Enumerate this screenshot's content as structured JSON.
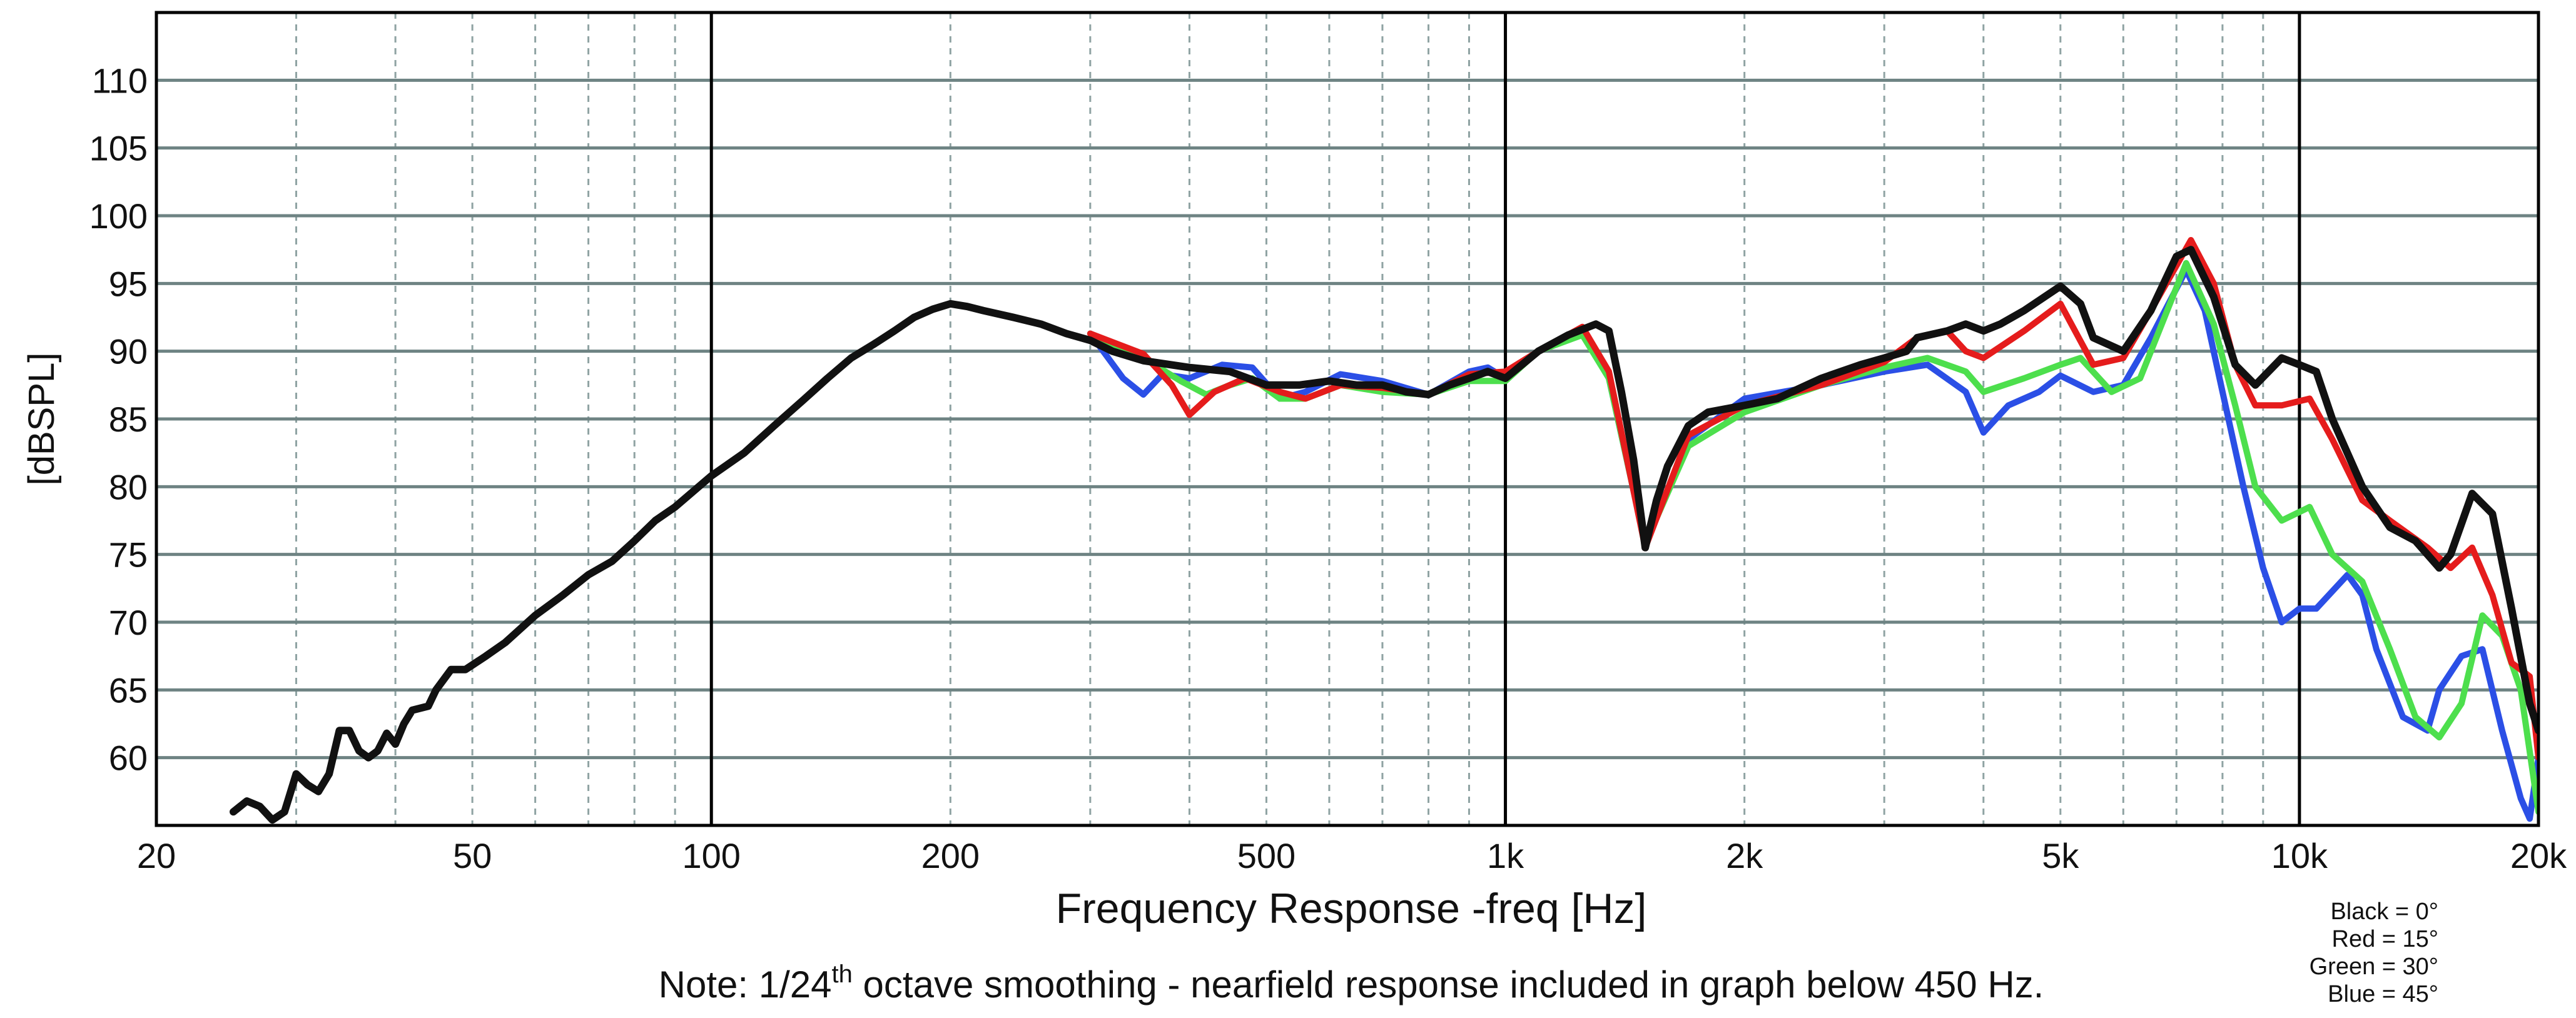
{
  "chart_data": {
    "type": "line",
    "xlabel": "Frequency Response -freq [Hz]",
    "ylabel": "[dBSPL]",
    "x_scale": "log",
    "xlim": [
      20,
      20000
    ],
    "ylim": [
      55,
      115
    ],
    "grid": true,
    "x_ticks": [
      {
        "value": 20,
        "label": "20"
      },
      {
        "value": 50,
        "label": "50"
      },
      {
        "value": 100,
        "label": "100"
      },
      {
        "value": 200,
        "label": "200"
      },
      {
        "value": 500,
        "label": "500"
      },
      {
        "value": 1000,
        "label": "1k"
      },
      {
        "value": 2000,
        "label": "2k"
      },
      {
        "value": 5000,
        "label": "5k"
      },
      {
        "value": 10000,
        "label": "10k"
      },
      {
        "value": 20000,
        "label": "20k"
      }
    ],
    "y_ticks": [
      60,
      65,
      70,
      75,
      80,
      85,
      90,
      95,
      100,
      105,
      110
    ],
    "note": {
      "prefix": "Note: 1/24",
      "superscript": "th",
      "suffix": " octave smoothing - nearfield response included in graph below 450 Hz."
    },
    "legend": [
      "Black = 0°",
      "Red = 15°",
      "Green = 30°",
      "Blue = 45°"
    ],
    "series": [
      {
        "color": "#2b4fe6",
        "points": [
          [
            300,
            91.3
          ],
          [
            330,
            88
          ],
          [
            350,
            86.8
          ],
          [
            370,
            88.3
          ],
          [
            400,
            88
          ],
          [
            440,
            89
          ],
          [
            480,
            88.8
          ],
          [
            520,
            86.5
          ],
          [
            560,
            87
          ],
          [
            620,
            88.3
          ],
          [
            700,
            87.8
          ],
          [
            800,
            86.8
          ],
          [
            900,
            88.5
          ],
          [
            950,
            88.8
          ],
          [
            1000,
            88
          ],
          [
            1100,
            90
          ],
          [
            1250,
            91.5
          ],
          [
            1350,
            88
          ],
          [
            1500,
            75.8
          ],
          [
            1700,
            83.5
          ],
          [
            2000,
            86.5
          ],
          [
            2500,
            87.5
          ],
          [
            3000,
            88.5
          ],
          [
            3400,
            89
          ],
          [
            3800,
            87
          ],
          [
            4000,
            84
          ],
          [
            4300,
            86
          ],
          [
            4700,
            87
          ],
          [
            5000,
            88.2
          ],
          [
            5500,
            87
          ],
          [
            6000,
            87.5
          ],
          [
            6500,
            91
          ],
          [
            7200,
            96
          ],
          [
            7600,
            93
          ],
          [
            8000,
            87
          ],
          [
            8500,
            80
          ],
          [
            9000,
            74
          ],
          [
            9500,
            70
          ],
          [
            10000,
            71
          ],
          [
            10500,
            71
          ],
          [
            11500,
            73.5
          ],
          [
            12000,
            72
          ],
          [
            12500,
            68
          ],
          [
            13500,
            63
          ],
          [
            14500,
            62
          ],
          [
            15000,
            65
          ],
          [
            16000,
            67.5
          ],
          [
            17000,
            68
          ],
          [
            18000,
            62
          ],
          [
            19000,
            57
          ],
          [
            19500,
            55.5
          ],
          [
            20000,
            60
          ]
        ]
      },
      {
        "color": "#4ddf4d",
        "points": [
          [
            300,
            91.3
          ],
          [
            350,
            89.5
          ],
          [
            390,
            87.8
          ],
          [
            420,
            86.8
          ],
          [
            450,
            87.5
          ],
          [
            480,
            88
          ],
          [
            520,
            86.5
          ],
          [
            560,
            86.5
          ],
          [
            620,
            87.5
          ],
          [
            700,
            87
          ],
          [
            800,
            86.8
          ],
          [
            900,
            87.8
          ],
          [
            1000,
            87.8
          ],
          [
            1100,
            90
          ],
          [
            1250,
            91.2
          ],
          [
            1350,
            88
          ],
          [
            1500,
            75.8
          ],
          [
            1700,
            83
          ],
          [
            2000,
            85.5
          ],
          [
            2500,
            87.5
          ],
          [
            3000,
            88.8
          ],
          [
            3400,
            89.5
          ],
          [
            3800,
            88.5
          ],
          [
            4000,
            87
          ],
          [
            4500,
            88
          ],
          [
            5000,
            89
          ],
          [
            5300,
            89.5
          ],
          [
            5800,
            87
          ],
          [
            6300,
            88
          ],
          [
            7200,
            96.5
          ],
          [
            7800,
            92
          ],
          [
            8300,
            86
          ],
          [
            8800,
            80
          ],
          [
            9500,
            77.5
          ],
          [
            10300,
            78.5
          ],
          [
            11000,
            75
          ],
          [
            12000,
            73
          ],
          [
            13000,
            68
          ],
          [
            14000,
            63
          ],
          [
            15000,
            61.5
          ],
          [
            16000,
            64
          ],
          [
            17000,
            70.5
          ],
          [
            18000,
            69
          ],
          [
            19000,
            65
          ],
          [
            20000,
            56
          ]
        ]
      },
      {
        "color": "#e51c1c",
        "points": [
          [
            300,
            91.3
          ],
          [
            350,
            89.8
          ],
          [
            380,
            87.5
          ],
          [
            400,
            85.3
          ],
          [
            430,
            87
          ],
          [
            470,
            88
          ],
          [
            520,
            87
          ],
          [
            560,
            86.5
          ],
          [
            620,
            87.5
          ],
          [
            700,
            87.3
          ],
          [
            800,
            86.8
          ],
          [
            900,
            88.3
          ],
          [
            1000,
            88.5
          ],
          [
            1100,
            90
          ],
          [
            1250,
            91.8
          ],
          [
            1350,
            88.5
          ],
          [
            1500,
            75.5
          ],
          [
            1700,
            83.8
          ],
          [
            2000,
            86
          ],
          [
            2500,
            87.5
          ],
          [
            3000,
            89.2
          ],
          [
            3300,
            91
          ],
          [
            3600,
            91.5
          ],
          [
            3800,
            90
          ],
          [
            4000,
            89.5
          ],
          [
            4500,
            91.5
          ],
          [
            5000,
            93.5
          ],
          [
            5500,
            89
          ],
          [
            6000,
            89.5
          ],
          [
            6500,
            93
          ],
          [
            7300,
            98.2
          ],
          [
            7800,
            95
          ],
          [
            8300,
            89
          ],
          [
            8800,
            86
          ],
          [
            9500,
            86
          ],
          [
            10300,
            86.5
          ],
          [
            11000,
            83.5
          ],
          [
            12000,
            79
          ],
          [
            13000,
            77.5
          ],
          [
            14500,
            75.5
          ],
          [
            15500,
            74
          ],
          [
            16500,
            75.5
          ],
          [
            17500,
            72
          ],
          [
            18500,
            67
          ],
          [
            19500,
            66
          ],
          [
            20000,
            60
          ]
        ]
      },
      {
        "color": "#111111",
        "points": [
          [
            25,
            56
          ],
          [
            26,
            56.8
          ],
          [
            27,
            56.4
          ],
          [
            28,
            55.4
          ],
          [
            29,
            56
          ],
          [
            30,
            58.8
          ],
          [
            31,
            58
          ],
          [
            32,
            57.5
          ],
          [
            33,
            58.8
          ],
          [
            34,
            62
          ],
          [
            35,
            62
          ],
          [
            36,
            60.5
          ],
          [
            37,
            60
          ],
          [
            38,
            60.5
          ],
          [
            39,
            61.8
          ],
          [
            40,
            61
          ],
          [
            41,
            62.5
          ],
          [
            42,
            63.5
          ],
          [
            44,
            63.8
          ],
          [
            45,
            65
          ],
          [
            47,
            66.5
          ],
          [
            49,
            66.5
          ],
          [
            52,
            67.5
          ],
          [
            55,
            68.5
          ],
          [
            60,
            70.5
          ],
          [
            65,
            72
          ],
          [
            70,
            73.5
          ],
          [
            75,
            74.5
          ],
          [
            80,
            76
          ],
          [
            85,
            77.5
          ],
          [
            90,
            78.5
          ],
          [
            100,
            80.8
          ],
          [
            110,
            82.5
          ],
          [
            120,
            84.5
          ],
          [
            130,
            86.3
          ],
          [
            140,
            88
          ],
          [
            150,
            89.5
          ],
          [
            160,
            90.5
          ],
          [
            170,
            91.5
          ],
          [
            180,
            92.5
          ],
          [
            190,
            93.1
          ],
          [
            200,
            93.5
          ],
          [
            210,
            93.3
          ],
          [
            220,
            93
          ],
          [
            240,
            92.5
          ],
          [
            260,
            92
          ],
          [
            280,
            91.3
          ],
          [
            300,
            90.8
          ],
          [
            320,
            90
          ],
          [
            350,
            89.3
          ],
          [
            400,
            88.8
          ],
          [
            450,
            88.5
          ],
          [
            500,
            87.5
          ],
          [
            550,
            87.5
          ],
          [
            600,
            87.8
          ],
          [
            650,
            87.5
          ],
          [
            700,
            87.5
          ],
          [
            750,
            87
          ],
          [
            800,
            86.8
          ],
          [
            850,
            87.5
          ],
          [
            900,
            88
          ],
          [
            950,
            88.5
          ],
          [
            1000,
            88
          ],
          [
            1100,
            90
          ],
          [
            1200,
            91.2
          ],
          [
            1300,
            92
          ],
          [
            1350,
            91.5
          ],
          [
            1400,
            87
          ],
          [
            1450,
            82
          ],
          [
            1500,
            75.5
          ],
          [
            1550,
            79
          ],
          [
            1600,
            81.5
          ],
          [
            1700,
            84.5
          ],
          [
            1800,
            85.5
          ],
          [
            2000,
            86
          ],
          [
            2200,
            86.5
          ],
          [
            2500,
            88
          ],
          [
            2800,
            89
          ],
          [
            3000,
            89.5
          ],
          [
            3200,
            90
          ],
          [
            3300,
            91
          ],
          [
            3600,
            91.5
          ],
          [
            3800,
            92
          ],
          [
            4000,
            91.5
          ],
          [
            4200,
            92
          ],
          [
            4500,
            93
          ],
          [
            5000,
            94.8
          ],
          [
            5300,
            93.5
          ],
          [
            5500,
            91
          ],
          [
            6000,
            90
          ],
          [
            6500,
            93
          ],
          [
            7000,
            97
          ],
          [
            7300,
            97.5
          ],
          [
            7800,
            94
          ],
          [
            8300,
            89
          ],
          [
            8800,
            87.5
          ],
          [
            9500,
            89.5
          ],
          [
            10000,
            89
          ],
          [
            10500,
            88.5
          ],
          [
            11000,
            85
          ],
          [
            12000,
            80
          ],
          [
            13000,
            77
          ],
          [
            14000,
            76
          ],
          [
            15000,
            74
          ],
          [
            15500,
            75
          ],
          [
            16500,
            79.5
          ],
          [
            17500,
            78
          ],
          [
            18500,
            71
          ],
          [
            19500,
            64
          ],
          [
            20000,
            62
          ]
        ]
      }
    ]
  }
}
